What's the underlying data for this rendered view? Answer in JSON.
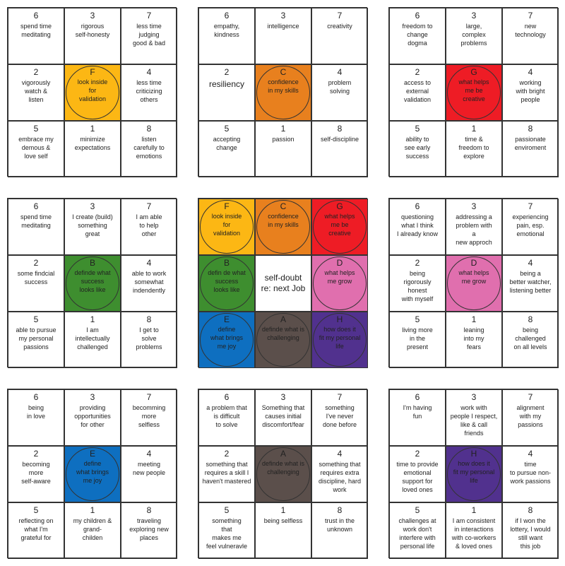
{
  "colors": {
    "F": "#FCB714",
    "C": "#E8801E",
    "G": "#EE1C25",
    "B": "#3E8E2F",
    "D": "#E06FAE",
    "E": "#0E6FC0",
    "A": "#5B4F4B",
    "H": "#51318E"
  },
  "center_grid": {
    "cells": [
      {
        "key": "F",
        "letter": "F",
        "text": "look inside\nfor\nvalidation"
      },
      {
        "key": "C",
        "letter": "C",
        "text": "confidence\nin my skills"
      },
      {
        "key": "G",
        "letter": "G",
        "text": "what helps\nme be\ncreative"
      },
      {
        "key": "B",
        "letter": "B",
        "text": "defin de what\nsuccess\nlooks like"
      },
      {
        "key": "center",
        "letter": "",
        "text": "self-doubt\nre: next Job"
      },
      {
        "key": "D",
        "letter": "D",
        "text": "what helps\nme grow"
      },
      {
        "key": "E",
        "letter": "E",
        "text": "define\nwhat brings\nme joy"
      },
      {
        "key": "A",
        "letter": "A",
        "text": "definde what is\nchallenging"
      },
      {
        "key": "H",
        "letter": "H",
        "text": "how does it\nfit my personal\nlife"
      }
    ]
  },
  "grids": [
    {
      "id": "F",
      "center_letter": "F",
      "center_text": "look inside\nfor\nvalidation",
      "cells": [
        {
          "num": "6",
          "text": "spend time\nmeditating"
        },
        {
          "num": "3",
          "text": "rigorous\nself-honesty"
        },
        {
          "num": "7",
          "text": "less time\njudging\ngood & bad"
        },
        {
          "num": "2",
          "text": "vigorously\nwatch &\nlisten"
        },
        {
          "num": "4",
          "text": "less time\ncriticizing\nothers"
        },
        {
          "num": "5",
          "text": "embrace my\ndemous &\nlove self"
        },
        {
          "num": "1",
          "text": "minimize\nexpectations"
        },
        {
          "num": "8",
          "text": "listen\ncarefully to\nemotions"
        }
      ]
    },
    {
      "id": "C",
      "center_letter": "C",
      "center_text": "confidence\nin my skills",
      "cells": [
        {
          "num": "6",
          "text": "empathy,\nkindness"
        },
        {
          "num": "3",
          "text": "intelligence"
        },
        {
          "num": "7",
          "text": "creativity"
        },
        {
          "num": "2",
          "text": "resiliency",
          "big": true
        },
        {
          "num": "4",
          "text": "problem\nsolving"
        },
        {
          "num": "5",
          "text": "accepting\nchange"
        },
        {
          "num": "1",
          "text": "passion"
        },
        {
          "num": "8",
          "text": "self-discipline"
        }
      ]
    },
    {
      "id": "G",
      "center_letter": "G",
      "center_text": "what helps\nme be\ncreative",
      "cells": [
        {
          "num": "6",
          "text": "freedom to\nchange\ndogma"
        },
        {
          "num": "3",
          "text": "large,\ncomplex\nproblems"
        },
        {
          "num": "7",
          "text": "new\ntechnology"
        },
        {
          "num": "2",
          "text": "access to\nexternal\nvalidation"
        },
        {
          "num": "4",
          "text": "working\nwith bright\npeople"
        },
        {
          "num": "5",
          "text": "ability to\nsee early\nsuccess"
        },
        {
          "num": "1",
          "text": "time &\nfreedom to\nexplore"
        },
        {
          "num": "8",
          "text": "passionate\nenviroment"
        }
      ]
    },
    {
      "id": "B",
      "center_letter": "B",
      "center_text": "definde what\nsuccess\nlooks like",
      "cells": [
        {
          "num": "6",
          "text": "spend time\nmeditating"
        },
        {
          "num": "3",
          "text": "I create (build)\nsomething\ngreat"
        },
        {
          "num": "7",
          "text": "I am able\nto help\nother"
        },
        {
          "num": "2",
          "text": "some findcial\nsuccess"
        },
        {
          "num": "4",
          "text": "able to work\nsomewhat\nindendently"
        },
        {
          "num": "5",
          "text": "able to pursue\nmy personal\npassions"
        },
        {
          "num": "1",
          "text": "I am\nintellectually\nchallenged"
        },
        {
          "num": "8",
          "text": "I get to\nsolve\nproblems"
        }
      ]
    },
    {
      "id": "D",
      "center_letter": "D",
      "center_text": "what helps\nme grow",
      "cells": [
        {
          "num": "6",
          "text": "questioning\nwhat I think\nI already know"
        },
        {
          "num": "3",
          "text": "addressing a\nproblem with\na\nnew approch"
        },
        {
          "num": "7",
          "text": "experiencing\npain, esp.\nemotional"
        },
        {
          "num": "2",
          "text": "being\nrigorously\nhonest\nwith myself"
        },
        {
          "num": "4",
          "text": "being a\nbetter watcher,\nlistening better"
        },
        {
          "num": "5",
          "text": "living more\nin the\npresent"
        },
        {
          "num": "1",
          "text": "leaning\ninto my\nfears"
        },
        {
          "num": "8",
          "text": "being\nchallenged\non all levels"
        }
      ]
    },
    {
      "id": "E",
      "center_letter": "E",
      "center_text": "define\nwhat brings\nme joy",
      "cells": [
        {
          "num": "6",
          "text": "being\nin love"
        },
        {
          "num": "3",
          "text": "providing\nopportunities\nfor other"
        },
        {
          "num": "7",
          "text": "becomming\nmore\nselfless"
        },
        {
          "num": "2",
          "text": "becoming\nmore\nself-aware"
        },
        {
          "num": "4",
          "text": "meeting\nnew people"
        },
        {
          "num": "5",
          "text": "reflecting on\nwhat I'm\ngrateful for"
        },
        {
          "num": "1",
          "text": "my children &\ngrand-\nchilden"
        },
        {
          "num": "8",
          "text": "traveling\nexploring new\nplaces"
        }
      ]
    },
    {
      "id": "A",
      "center_letter": "A",
      "center_text": "definde what is\nchallenging",
      "cells": [
        {
          "num": "6",
          "text": "a problem that\nis difficult\nto solve"
        },
        {
          "num": "3",
          "text": "Something that\ncauses initial\ndiscomfort/fear"
        },
        {
          "num": "7",
          "text": "something\nI've never\ndone before"
        },
        {
          "num": "2",
          "text": "something that\nrequires a skill I\nhaven't mastered"
        },
        {
          "num": "4",
          "text": "something that\nrequires extra\ndiscipline, hard\nwork"
        },
        {
          "num": "5",
          "text": "something\nthat\nmakes me\nfeel vulneravle"
        },
        {
          "num": "1",
          "text": "being selfless"
        },
        {
          "num": "8",
          "text": "trust in the\nunknown"
        }
      ]
    },
    {
      "id": "H",
      "center_letter": "H",
      "center_text": "how does it\nfit my personal\nlife",
      "cells": [
        {
          "num": "6",
          "text": "I'm having\nfun"
        },
        {
          "num": "3",
          "text": "work with\npeople I respect,\nlike & call\nfriends"
        },
        {
          "num": "7",
          "text": "alignment\nwith my\npassions"
        },
        {
          "num": "2",
          "text": "time to provide\nemotional\nsupport for\nloved ones"
        },
        {
          "num": "4",
          "text": "time\nto pursue non-\nwork passions"
        },
        {
          "num": "5",
          "text": "challenges at\nwork don't\ninterfere with\npersonal life"
        },
        {
          "num": "1",
          "text": "I am consistent\nin interactions\nwith co-workers\n& loved ones"
        },
        {
          "num": "8",
          "text": "if I won the\nlottery, I would\nstill want\nthis job"
        }
      ]
    }
  ]
}
